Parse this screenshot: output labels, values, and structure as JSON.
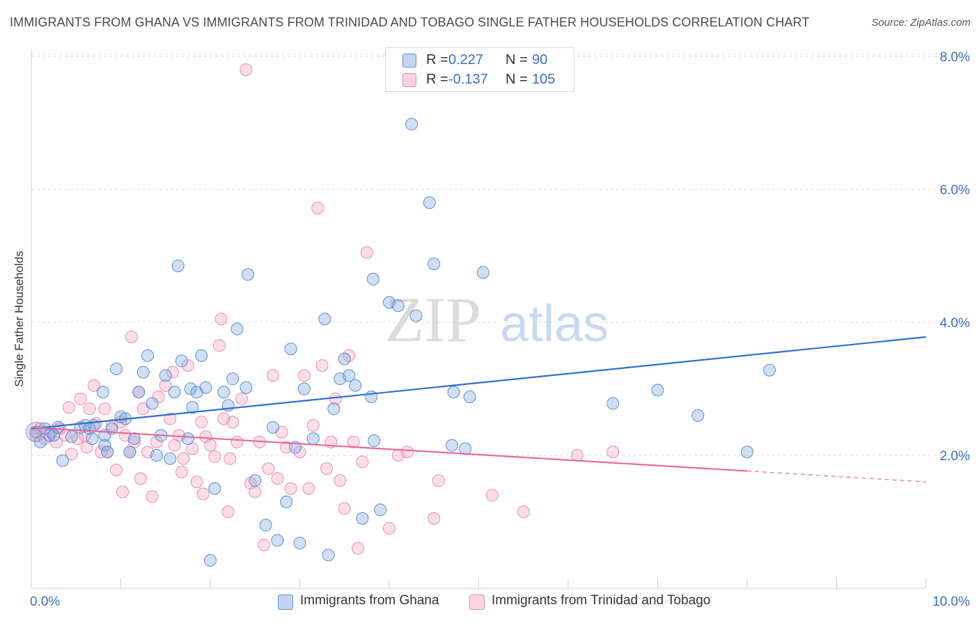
{
  "title": "IMMIGRANTS FROM GHANA VS IMMIGRANTS FROM TRINIDAD AND TOBAGO SINGLE FATHER HOUSEHOLDS CORRELATION CHART",
  "source": "Source: ZipAtlas.com",
  "watermark": {
    "zip": "ZIP",
    "atlas": "atlas"
  },
  "legend": {
    "rows": [
      {
        "r_label": "R =",
        "r_value": "0.227",
        "n_label": "N =",
        "n_value": "90",
        "color": "#6a9ad8"
      },
      {
        "r_label": "R =",
        "r_value": "-0.137",
        "n_label": "N =",
        "n_value": "105",
        "color": "#ee8fb0"
      }
    ]
  },
  "bottom_legend": {
    "ghana": "Immigrants from Ghana",
    "tt": "Immigrants from Trinidad and Tobago"
  },
  "chart_data": {
    "type": "scatter",
    "xlabel": "",
    "ylabel": "Single Father Households",
    "xlim": [
      0,
      10
    ],
    "ylim": [
      0,
      8.2
    ],
    "x_tick_labels": [
      {
        "value": 0,
        "label": "0.0%"
      },
      {
        "value": 10,
        "label": "10.0%"
      }
    ],
    "y_tick_labels": [
      {
        "value": 2,
        "label": "2.0%"
      },
      {
        "value": 4,
        "label": "4.0%"
      },
      {
        "value": 6,
        "label": "6.0%"
      },
      {
        "value": 8,
        "label": "8.0%"
      }
    ],
    "colors": {
      "ghana_fill": "rgba(120,162,222,0.35)",
      "ghana_stroke": "#5b8fd6",
      "ghana_line": "#2f6fcf",
      "tt_fill": "rgba(244,160,190,0.35)",
      "tt_stroke": "#ec8db0",
      "tt_line": "#e8689a"
    },
    "series": [
      {
        "name": "Immigrants from Ghana",
        "trend": {
          "x0": 0,
          "y0": 2.4,
          "x1": 10,
          "y1": 3.78,
          "dashed_from": null
        },
        "points": [
          [
            0.05,
            2.35
          ],
          [
            0.1,
            2.2
          ],
          [
            0.15,
            2.4
          ],
          [
            0.2,
            2.3
          ],
          [
            0.25,
            2.3
          ],
          [
            0.3,
            2.42
          ],
          [
            0.35,
            1.92
          ],
          [
            0.45,
            2.28
          ],
          [
            0.55,
            2.42
          ],
          [
            0.6,
            2.45
          ],
          [
            0.65,
            2.4
          ],
          [
            0.7,
            2.45
          ],
          [
            0.68,
            2.25
          ],
          [
            0.8,
            2.95
          ],
          [
            0.82,
            2.3
          ],
          [
            0.82,
            2.15
          ],
          [
            0.85,
            2.05
          ],
          [
            0.9,
            2.4
          ],
          [
            0.95,
            3.3
          ],
          [
            1.0,
            2.58
          ],
          [
            1.05,
            2.55
          ],
          [
            1.1,
            2.05
          ],
          [
            1.15,
            2.25
          ],
          [
            1.2,
            2.95
          ],
          [
            1.25,
            3.25
          ],
          [
            1.3,
            3.5
          ],
          [
            1.35,
            2.78
          ],
          [
            1.4,
            2.0
          ],
          [
            1.45,
            2.3
          ],
          [
            1.5,
            3.2
          ],
          [
            1.55,
            1.95
          ],
          [
            1.6,
            2.95
          ],
          [
            1.64,
            4.85
          ],
          [
            1.68,
            3.42
          ],
          [
            1.75,
            2.25
          ],
          [
            1.78,
            3.0
          ],
          [
            1.8,
            2.72
          ],
          [
            1.85,
            2.95
          ],
          [
            1.9,
            3.5
          ],
          [
            1.95,
            3.02
          ],
          [
            2.0,
            0.42
          ],
          [
            2.05,
            1.5
          ],
          [
            2.15,
            2.95
          ],
          [
            2.2,
            2.75
          ],
          [
            2.25,
            3.15
          ],
          [
            2.3,
            3.9
          ],
          [
            2.4,
            3.02
          ],
          [
            2.42,
            4.72
          ],
          [
            2.5,
            1.62
          ],
          [
            2.62,
            0.95
          ],
          [
            2.7,
            2.42
          ],
          [
            2.75,
            0.72
          ],
          [
            2.85,
            1.3
          ],
          [
            2.9,
            3.6
          ],
          [
            2.95,
            2.12
          ],
          [
            3.0,
            0.68
          ],
          [
            3.05,
            3.0
          ],
          [
            3.15,
            2.25
          ],
          [
            3.28,
            4.05
          ],
          [
            3.32,
            0.5
          ],
          [
            3.38,
            2.7
          ],
          [
            3.45,
            3.15
          ],
          [
            3.5,
            3.45
          ],
          [
            3.55,
            3.2
          ],
          [
            3.62,
            3.05
          ],
          [
            3.7,
            1.05
          ],
          [
            3.8,
            2.88
          ],
          [
            3.83,
            2.22
          ],
          [
            3.9,
            1.18
          ],
          [
            3.82,
            4.65
          ],
          [
            4.0,
            4.3
          ],
          [
            4.1,
            4.25
          ],
          [
            4.3,
            4.1
          ],
          [
            4.25,
            6.98
          ],
          [
            4.45,
            5.8
          ],
          [
            4.5,
            4.88
          ],
          [
            4.7,
            2.15
          ],
          [
            4.72,
            2.95
          ],
          [
            4.85,
            2.1
          ],
          [
            4.9,
            2.88
          ],
          [
            5.05,
            4.75
          ],
          [
            6.5,
            2.78
          ],
          [
            7.0,
            2.98
          ],
          [
            7.45,
            2.6
          ],
          [
            8.0,
            2.05
          ],
          [
            8.25,
            3.28
          ]
        ]
      },
      {
        "name": "Immigrants from Trinidad and Tobago",
        "trend": {
          "x0": 0,
          "y0": 2.42,
          "x1": 10,
          "y1": 1.6,
          "dashed_from": 8
        },
        "points": [
          [
            0.05,
            2.3
          ],
          [
            0.1,
            2.4
          ],
          [
            0.15,
            2.25
          ],
          [
            0.22,
            2.35
          ],
          [
            0.28,
            2.2
          ],
          [
            0.32,
            2.4
          ],
          [
            0.38,
            2.3
          ],
          [
            0.42,
            2.72
          ],
          [
            0.45,
            2.02
          ],
          [
            0.52,
            2.25
          ],
          [
            0.55,
            2.85
          ],
          [
            0.6,
            2.3
          ],
          [
            0.62,
            2.12
          ],
          [
            0.65,
            2.7
          ],
          [
            0.7,
            3.05
          ],
          [
            0.72,
            2.48
          ],
          [
            0.78,
            2.05
          ],
          [
            0.82,
            2.7
          ],
          [
            0.85,
            2.05
          ],
          [
            0.9,
            2.45
          ],
          [
            0.95,
            1.78
          ],
          [
            1.0,
            2.5
          ],
          [
            1.02,
            1.45
          ],
          [
            1.05,
            2.3
          ],
          [
            1.1,
            2.05
          ],
          [
            1.12,
            3.78
          ],
          [
            1.15,
            2.2
          ],
          [
            1.2,
            2.95
          ],
          [
            1.22,
            1.65
          ],
          [
            1.25,
            2.7
          ],
          [
            1.3,
            2.05
          ],
          [
            1.35,
            1.38
          ],
          [
            1.4,
            2.2
          ],
          [
            1.42,
            2.88
          ],
          [
            1.5,
            3.05
          ],
          [
            1.55,
            2.55
          ],
          [
            1.58,
            3.25
          ],
          [
            1.6,
            2.15
          ],
          [
            1.65,
            2.3
          ],
          [
            1.68,
            1.75
          ],
          [
            1.7,
            1.95
          ],
          [
            1.75,
            3.35
          ],
          [
            1.8,
            2.1
          ],
          [
            1.85,
            1.6
          ],
          [
            1.9,
            2.5
          ],
          [
            1.92,
            1.42
          ],
          [
            1.95,
            2.28
          ],
          [
            2.0,
            2.15
          ],
          [
            2.05,
            1.98
          ],
          [
            2.1,
            3.65
          ],
          [
            2.12,
            4.05
          ],
          [
            2.15,
            2.55
          ],
          [
            2.2,
            1.15
          ],
          [
            2.22,
            1.95
          ],
          [
            2.25,
            2.5
          ],
          [
            2.3,
            2.2
          ],
          [
            2.35,
            2.85
          ],
          [
            2.4,
            7.8
          ],
          [
            2.45,
            1.58
          ],
          [
            2.5,
            1.45
          ],
          [
            2.55,
            2.2
          ],
          [
            2.6,
            0.65
          ],
          [
            2.65,
            1.8
          ],
          [
            2.7,
            3.2
          ],
          [
            2.75,
            1.65
          ],
          [
            2.8,
            2.35
          ],
          [
            2.85,
            2.12
          ],
          [
            2.9,
            1.5
          ],
          [
            3.0,
            2.05
          ],
          [
            3.05,
            3.2
          ],
          [
            3.1,
            1.5
          ],
          [
            3.15,
            2.45
          ],
          [
            3.2,
            5.72
          ],
          [
            3.25,
            3.35
          ],
          [
            3.3,
            1.8
          ],
          [
            3.35,
            2.2
          ],
          [
            3.4,
            2.85
          ],
          [
            3.45,
            1.62
          ],
          [
            3.5,
            1.2
          ],
          [
            3.55,
            3.5
          ],
          [
            3.6,
            2.2
          ],
          [
            3.65,
            0.6
          ],
          [
            3.7,
            1.9
          ],
          [
            3.75,
            5.05
          ],
          [
            4.0,
            0.9
          ],
          [
            4.1,
            2.0
          ],
          [
            4.2,
            2.05
          ],
          [
            4.5,
            1.05
          ],
          [
            4.55,
            1.62
          ],
          [
            5.15,
            1.4
          ],
          [
            5.5,
            1.15
          ],
          [
            6.1,
            2.0
          ],
          [
            6.5,
            2.05
          ]
        ]
      }
    ]
  }
}
